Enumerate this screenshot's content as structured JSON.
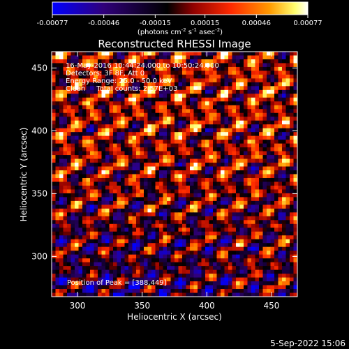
{
  "chart_data": {
    "type": "heatmap",
    "title": "Reconstructed RHESSI Image",
    "xlabel": "Heliocentric X (arcsec)",
    "ylabel": "Heliocentric Y (arcsec)",
    "xlim": [
      280,
      470
    ],
    "ylim": [
      268,
      463
    ],
    "x_ticks": [
      300,
      350,
      400,
      450
    ],
    "y_ticks": [
      300,
      350,
      400,
      450
    ],
    "colorbar": {
      "ticks": [
        "-0.00077",
        "-0.00046",
        "-0.00015",
        "0.00015",
        "0.00046",
        "0.00077"
      ],
      "range": [
        -0.00077,
        0.00077
      ],
      "colors": [
        "#0000ff",
        "#30007a",
        "#000000",
        "#8f0000",
        "#ff2a00",
        "#ff9a00",
        "#ffff70",
        "#ffffff"
      ]
    },
    "annotations": [
      "16-May-2016 10:44:24.000 to 10:50:24.000",
      "Detectors: 3F 8F, Att 0",
      "Energy Range: 25.0 - 50.0 keV",
      "Clean     Total counts: 2.57E+03"
    ],
    "peak_label": "Position of Peak = [388,449]",
    "peak_position": [
      388,
      449
    ],
    "footer_date": "5-Sep-2022 15:06"
  }
}
